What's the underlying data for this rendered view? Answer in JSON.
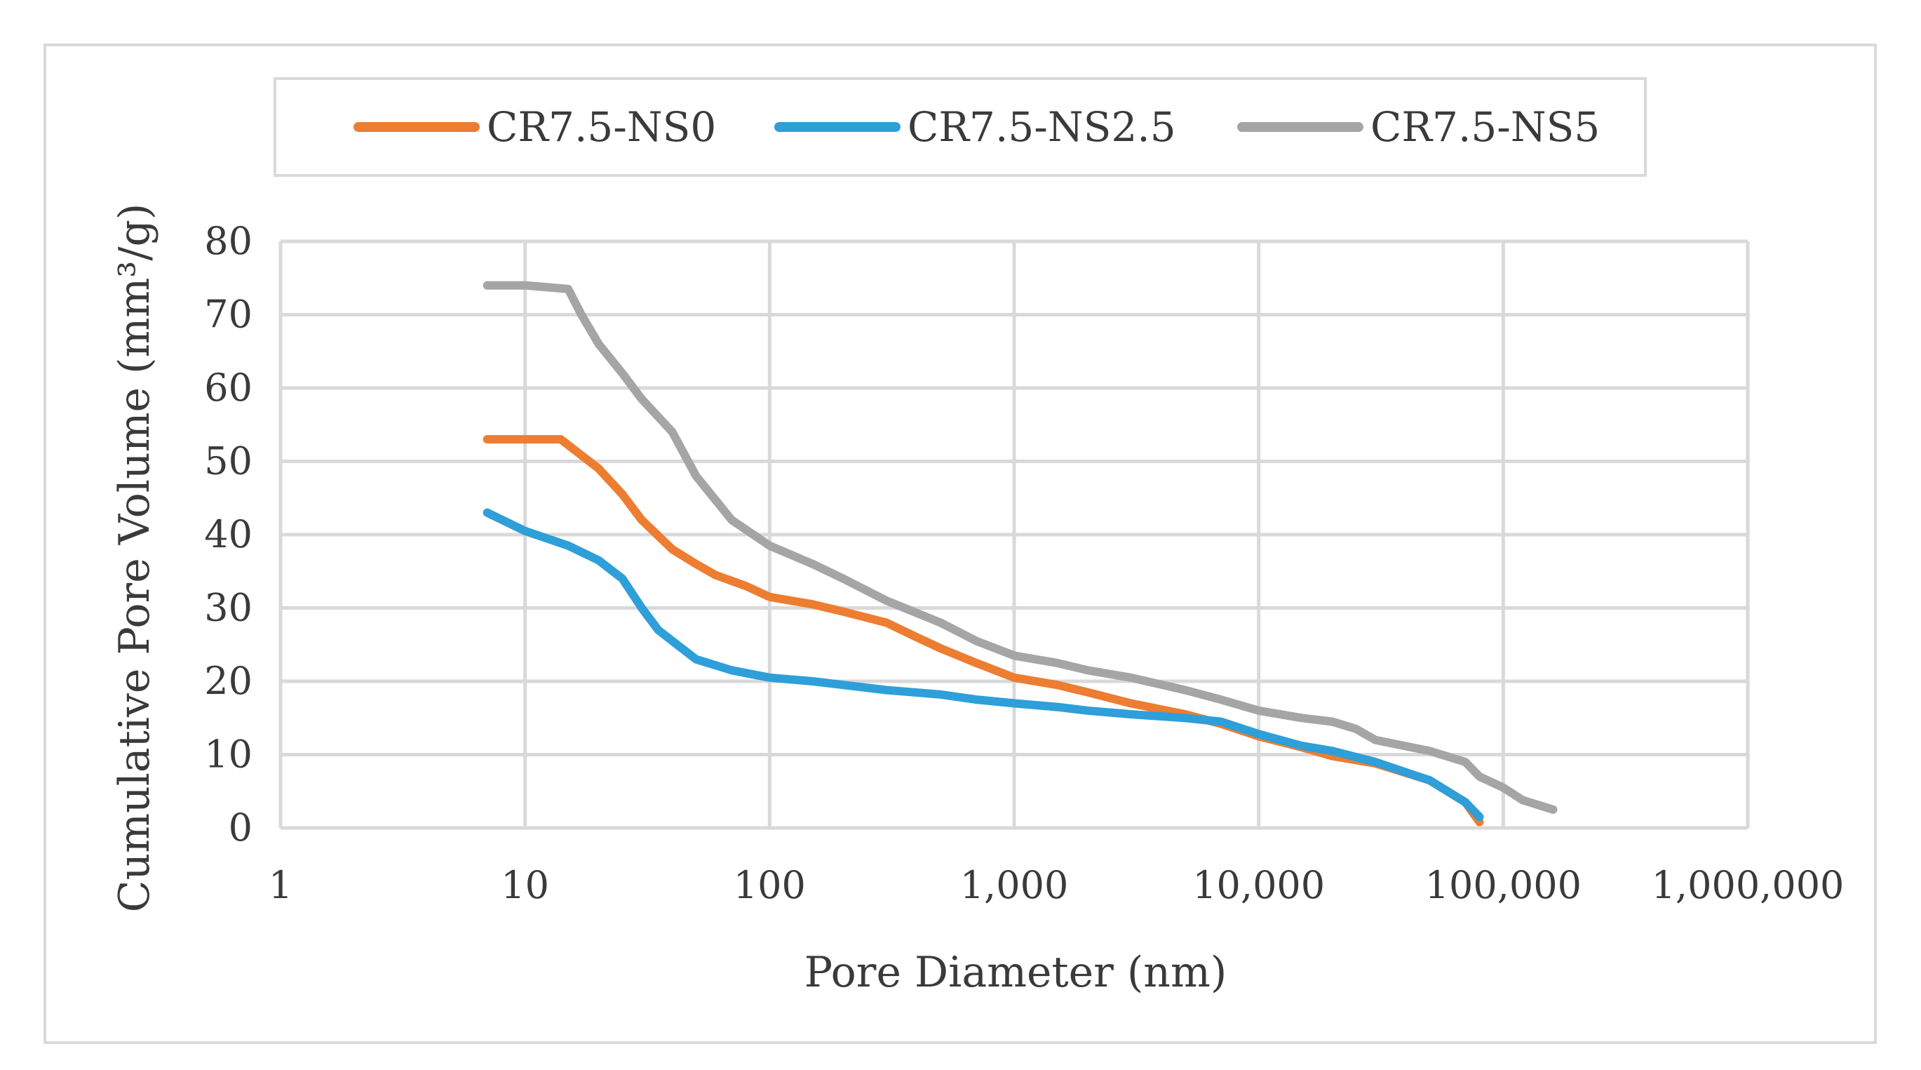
{
  "chart_data": {
    "type": "line",
    "xlabel": "Pore Diameter (nm)",
    "ylabel": "Cumulative Pore Volume (mm³/g)",
    "x_scale": "log",
    "xlim": [
      1,
      1000000
    ],
    "ylim": [
      0,
      80
    ],
    "x_ticks": [
      "1",
      "10",
      "100",
      "1,000",
      "10,000",
      "100,000",
      "1,000,000"
    ],
    "x_tick_values": [
      1,
      10,
      100,
      1000,
      10000,
      100000,
      1000000
    ],
    "y_ticks": [
      "0",
      "10",
      "20",
      "30",
      "40",
      "50",
      "60",
      "70",
      "80"
    ],
    "y_tick_values": [
      0,
      10,
      20,
      30,
      40,
      50,
      60,
      70,
      80
    ],
    "grid": true,
    "legend_position": "top",
    "series": [
      {
        "name": "CR7.5-NS0",
        "color": "#ED7D31",
        "x": [
          7,
          10,
          14,
          16,
          20,
          25,
          30,
          40,
          50,
          60,
          80,
          100,
          150,
          200,
          300,
          400,
          500,
          700,
          1000,
          1500,
          2000,
          3000,
          5000,
          7000,
          10000,
          15000,
          20000,
          30000,
          50000,
          70000,
          80000
        ],
        "y": [
          53,
          53,
          53,
          51.5,
          49,
          45.5,
          42,
          38,
          36,
          34.5,
          33,
          31.5,
          30.5,
          29.5,
          28,
          26,
          24.5,
          22.5,
          20.5,
          19.5,
          18.5,
          17,
          15.5,
          14.2,
          12.5,
          11,
          9.8,
          8.8,
          6.5,
          3.5,
          0.8
        ]
      },
      {
        "name": "CR7.5-NS2.5",
        "color": "#2E9FD8",
        "x": [
          7,
          10,
          15,
          20,
          25,
          30,
          35,
          40,
          50,
          70,
          100,
          150,
          200,
          300,
          500,
          700,
          1000,
          1500,
          2000,
          3000,
          5000,
          7000,
          10000,
          15000,
          20000,
          30000,
          50000,
          70000,
          80000
        ],
        "y": [
          43,
          40.5,
          38.5,
          36.5,
          34,
          30,
          27,
          25.5,
          23,
          21.5,
          20.5,
          20,
          19.5,
          18.8,
          18.2,
          17.5,
          17,
          16.5,
          16,
          15.5,
          15,
          14.5,
          12.8,
          11.2,
          10.5,
          9,
          6.5,
          3.5,
          1.5
        ]
      },
      {
        "name": "CR7.5-NS5",
        "color": "#A5A5A5",
        "x": [
          7,
          10,
          15,
          17,
          20,
          25,
          30,
          40,
          50,
          70,
          100,
          150,
          200,
          300,
          500,
          700,
          1000,
          1500,
          2000,
          3000,
          5000,
          7000,
          10000,
          15000,
          20000,
          25000,
          30000,
          50000,
          70000,
          80000,
          100000,
          120000,
          160000
        ],
        "y": [
          74,
          74,
          73.5,
          70,
          66,
          62,
          58.5,
          54,
          48,
          42,
          38.5,
          36,
          34,
          31,
          28,
          25.5,
          23.5,
          22.5,
          21.5,
          20.5,
          18.8,
          17.5,
          16,
          15,
          14.5,
          13.5,
          12,
          10.5,
          9,
          7,
          5.5,
          3.8,
          2.5
        ]
      }
    ]
  }
}
